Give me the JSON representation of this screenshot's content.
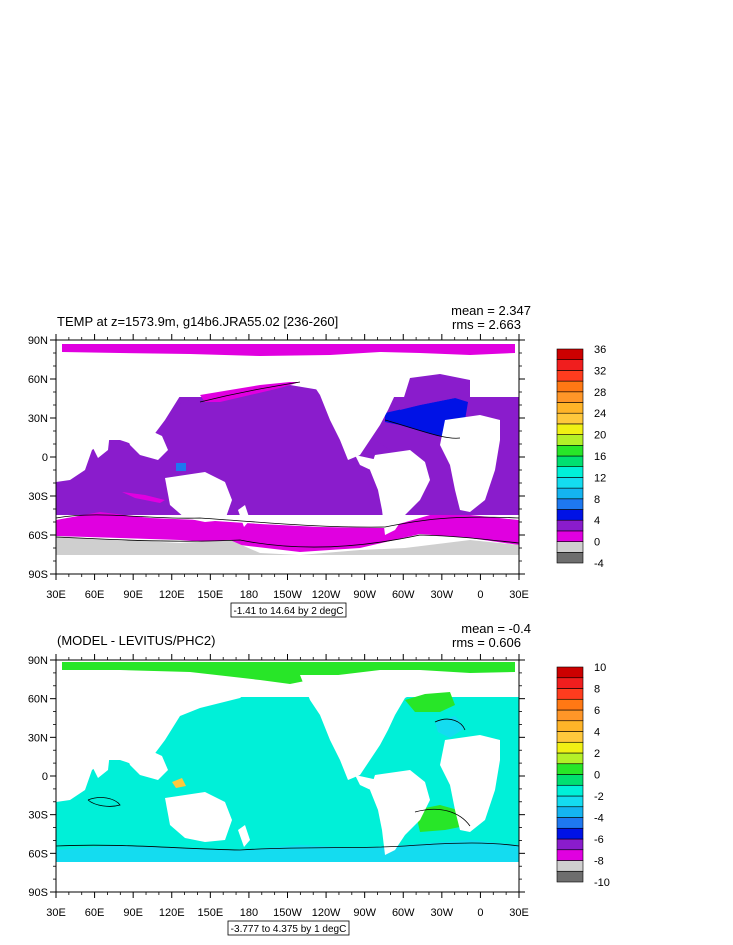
{
  "panels": [
    {
      "id": "temp",
      "title": "TEMP at z=1573.9m, g14b6.JRA55.02 [236-260]",
      "stats": {
        "mean_label": "mean = 2.347",
        "rms_label": "rms = 2.663"
      },
      "contour_info": "-1.41 to 14.64 by 2 degC",
      "y_ticks": [
        "90N",
        "60N",
        "30N",
        "0",
        "30S",
        "60S",
        "90S"
      ],
      "x_ticks": [
        "30E",
        "60E",
        "90E",
        "120E",
        "150E",
        "180",
        "150W",
        "120W",
        "90W",
        "60W",
        "30W",
        "0",
        "30E"
      ],
      "colorbar": {
        "labels": [
          "36",
          "32",
          "28",
          "24",
          "20",
          "16",
          "12",
          "8",
          "4",
          "0",
          "-4"
        ],
        "colors": [
          "#6e6e6e",
          "#cfcfcf",
          "#e000e0",
          "#8a1ccc",
          "#0012e6",
          "#1e78f0",
          "#14b4f0",
          "#14dcf0",
          "#00f0d8",
          "#00e070",
          "#28e628",
          "#b4f028",
          "#f0f014",
          "#ffc83c",
          "#ffb428",
          "#ff9628",
          "#ff7814",
          "#ff3c1e",
          "#f01e1e",
          "#cc0000"
        ]
      },
      "fields": {
        "ocean": "#8a1ccc",
        "arctic": "#e000e0",
        "southern": "#e000e0",
        "antarctic": "#cfcfcf",
        "north_atlantic": "#0012e6",
        "small_patch": "#1e78f0"
      }
    },
    {
      "id": "diff",
      "title": "(MODEL - LEVITUS/PHC2)",
      "stats": {
        "mean_label": "mean = -0.4",
        "rms_label": "rms = 0.606"
      },
      "contour_info": "-3.777 to 4.375 by 1 degC",
      "y_ticks": [
        "90N",
        "60N",
        "30N",
        "0",
        "30S",
        "60S",
        "90S"
      ],
      "x_ticks": [
        "30E",
        "60E",
        "90E",
        "120E",
        "150E",
        "180",
        "150W",
        "120W",
        "90W",
        "60W",
        "30W",
        "0",
        "30E"
      ],
      "colorbar": {
        "labels": [
          "10",
          "8",
          "6",
          "4",
          "2",
          "0",
          "-2",
          "-4",
          "-6",
          "-8",
          "-10"
        ],
        "colors": [
          "#6e6e6e",
          "#cfcfcf",
          "#e000e0",
          "#8a1ccc",
          "#0012e6",
          "#1e78f0",
          "#14b4f0",
          "#14dcf0",
          "#00f0d8",
          "#00e070",
          "#28e628",
          "#b4f028",
          "#f0f014",
          "#ffc83c",
          "#ffb428",
          "#ff9628",
          "#ff7814",
          "#ff3c1e",
          "#f01e1e",
          "#cc0000"
        ]
      },
      "fields": {
        "ocean": "#00f0d8",
        "arctic": "#28e628",
        "southern": "#14dcf0",
        "north_atlantic": "#28e628",
        "labrador": "#14dcf0",
        "south_atlantic": "#28e628",
        "warm_patch": "#ffc83c"
      }
    }
  ]
}
